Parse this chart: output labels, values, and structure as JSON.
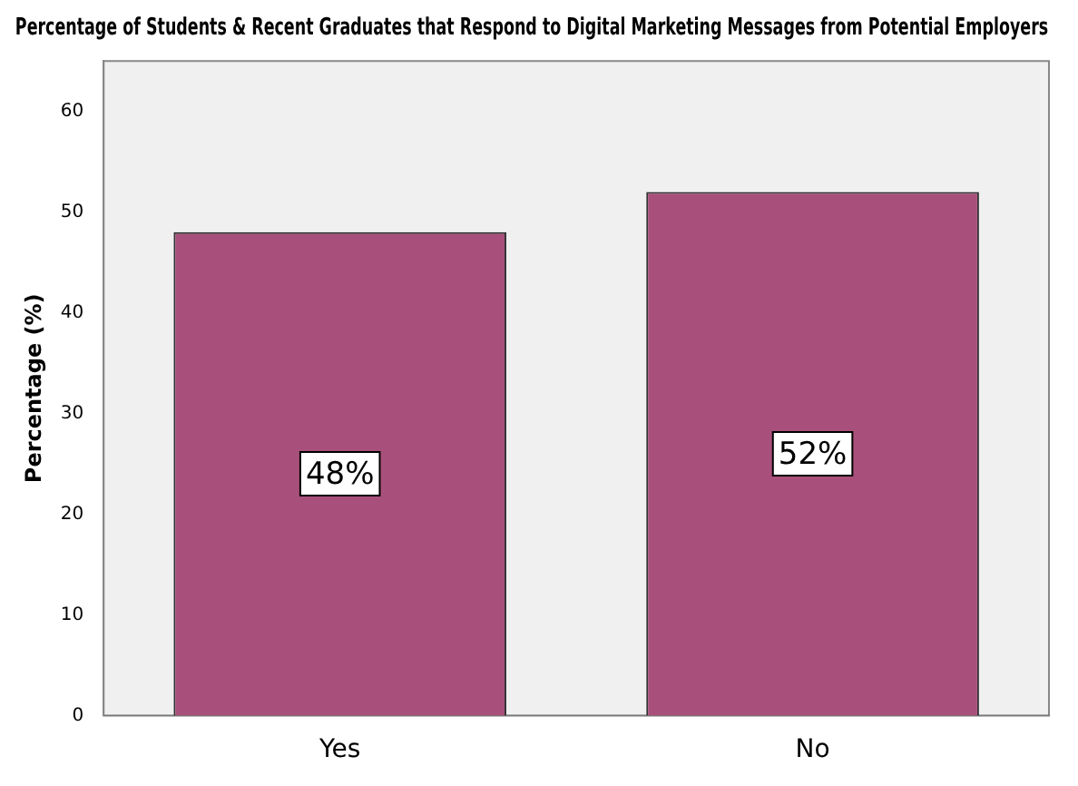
{
  "chart_data": {
    "type": "bar",
    "title": "Percentage of Students & Recent Graduates that Respond to Digital Marketing Messages from Potential Employers",
    "ylabel": "Percentage (%)",
    "categories": [
      "Yes",
      "No"
    ],
    "values": [
      48,
      52
    ],
    "value_labels": [
      "48%",
      "52%"
    ],
    "color": "#a8507b",
    "ylim": [
      0,
      65
    ],
    "yticks": [
      0,
      10,
      20,
      30,
      40,
      50,
      60
    ],
    "grid": false,
    "legend": false
  }
}
